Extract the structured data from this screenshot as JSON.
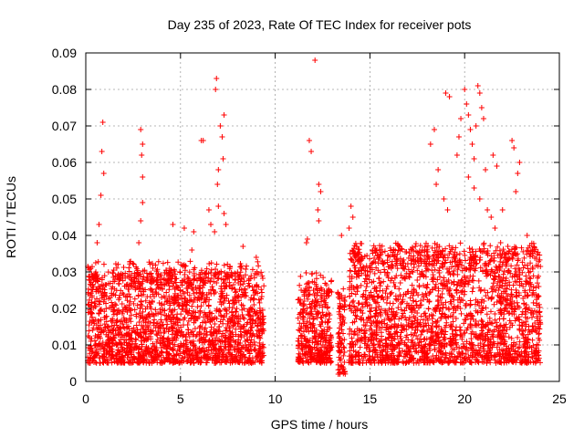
{
  "chart_data": {
    "type": "scatter",
    "title": "Day 235 of 2023, Rate Of TEC Index for receiver pots",
    "xlabel": "GPS time / hours",
    "ylabel": "ROTI / TECUs",
    "xlim": [
      0,
      25
    ],
    "ylim": [
      0,
      0.09
    ],
    "x_ticks": [
      0,
      5,
      10,
      15,
      20,
      25
    ],
    "y_ticks": [
      0,
      0.01,
      0.02,
      0.03,
      0.04,
      0.05,
      0.06,
      0.07,
      0.08,
      0.09
    ],
    "x_tick_labels": [
      "0",
      "5",
      "10",
      "15",
      "20",
      "25"
    ],
    "y_tick_labels": [
      "0",
      "0.01",
      "0.02",
      "0.03",
      "0.04",
      "0.05",
      "0.06",
      "0.07",
      "0.08",
      "0.09"
    ],
    "grid": true,
    "marker": "plus",
    "color": "#ff0000",
    "data_segments": [
      {
        "x_start": 0.1,
        "x_end": 9.4,
        "typical_range": [
          0.005,
          0.025
        ]
      },
      {
        "x_start": 11.2,
        "x_end": 13.0,
        "typical_range": [
          0.005,
          0.022
        ]
      },
      {
        "x_start": 13.3,
        "x_end": 13.7,
        "typical_range": [
          0.002,
          0.02
        ]
      },
      {
        "x_start": 13.9,
        "x_end": 24.0,
        "typical_range": [
          0.005,
          0.03
        ]
      }
    ],
    "series": [
      {
        "points": [
          [
            0.9,
            0.071
          ],
          [
            0.85,
            0.063
          ],
          [
            0.95,
            0.057
          ],
          [
            0.8,
            0.051
          ],
          [
            0.7,
            0.043
          ],
          [
            0.6,
            0.038
          ],
          [
            2.9,
            0.069
          ],
          [
            3.0,
            0.065
          ],
          [
            2.95,
            0.062
          ],
          [
            3.0,
            0.056
          ],
          [
            3.0,
            0.049
          ],
          [
            2.9,
            0.044
          ],
          [
            2.8,
            0.038
          ],
          [
            4.6,
            0.043
          ],
          [
            5.2,
            0.042
          ],
          [
            5.7,
            0.041
          ],
          [
            5.6,
            0.036
          ],
          [
            6.1,
            0.066
          ],
          [
            6.2,
            0.066
          ],
          [
            6.5,
            0.047
          ],
          [
            6.6,
            0.043
          ],
          [
            6.9,
            0.083
          ],
          [
            6.85,
            0.08
          ],
          [
            7.1,
            0.07
          ],
          [
            7.3,
            0.073
          ],
          [
            7.2,
            0.067
          ],
          [
            7.25,
            0.061
          ],
          [
            7.0,
            0.058
          ],
          [
            6.95,
            0.054
          ],
          [
            7.0,
            0.048
          ],
          [
            7.3,
            0.046
          ],
          [
            7.4,
            0.043
          ],
          [
            6.8,
            0.041
          ],
          [
            8.3,
            0.037
          ],
          [
            9.0,
            0.034
          ],
          [
            11.8,
            0.066
          ],
          [
            11.9,
            0.063
          ],
          [
            12.1,
            0.088
          ],
          [
            12.3,
            0.054
          ],
          [
            12.4,
            0.052
          ],
          [
            12.25,
            0.047
          ],
          [
            12.3,
            0.044
          ],
          [
            11.7,
            0.039
          ],
          [
            11.65,
            0.038
          ],
          [
            13.5,
            0.04
          ],
          [
            14.0,
            0.048
          ],
          [
            14.1,
            0.045
          ],
          [
            13.9,
            0.042
          ],
          [
            14.3,
            0.037
          ],
          [
            15.5,
            0.036
          ],
          [
            16.5,
            0.036
          ],
          [
            17.4,
            0.037
          ],
          [
            18.4,
            0.069
          ],
          [
            18.2,
            0.065
          ],
          [
            18.6,
            0.058
          ],
          [
            18.5,
            0.054
          ],
          [
            18.9,
            0.05
          ],
          [
            19.1,
            0.047
          ],
          [
            19.0,
            0.079
          ],
          [
            19.2,
            0.078
          ],
          [
            19.8,
            0.072
          ],
          [
            19.7,
            0.067
          ],
          [
            19.6,
            0.062
          ],
          [
            20.0,
            0.08
          ],
          [
            20.1,
            0.076
          ],
          [
            20.2,
            0.073
          ],
          [
            20.3,
            0.069
          ],
          [
            20.4,
            0.065
          ],
          [
            20.5,
            0.061
          ],
          [
            20.7,
            0.081
          ],
          [
            20.8,
            0.079
          ],
          [
            20.9,
            0.075
          ],
          [
            21.0,
            0.072
          ],
          [
            20.6,
            0.07
          ],
          [
            21.1,
            0.058
          ],
          [
            20.2,
            0.056
          ],
          [
            20.5,
            0.053
          ],
          [
            20.8,
            0.05
          ],
          [
            21.2,
            0.047
          ],
          [
            21.4,
            0.045
          ],
          [
            21.6,
            0.042
          ],
          [
            22.0,
            0.047
          ],
          [
            22.5,
            0.066
          ],
          [
            22.6,
            0.064
          ],
          [
            22.9,
            0.06
          ],
          [
            22.8,
            0.057
          ],
          [
            22.7,
            0.052
          ],
          [
            23.3,
            0.04
          ],
          [
            21.9,
            0.038
          ],
          [
            21.5,
            0.062
          ],
          [
            21.7,
            0.059
          ]
        ]
      }
    ]
  }
}
